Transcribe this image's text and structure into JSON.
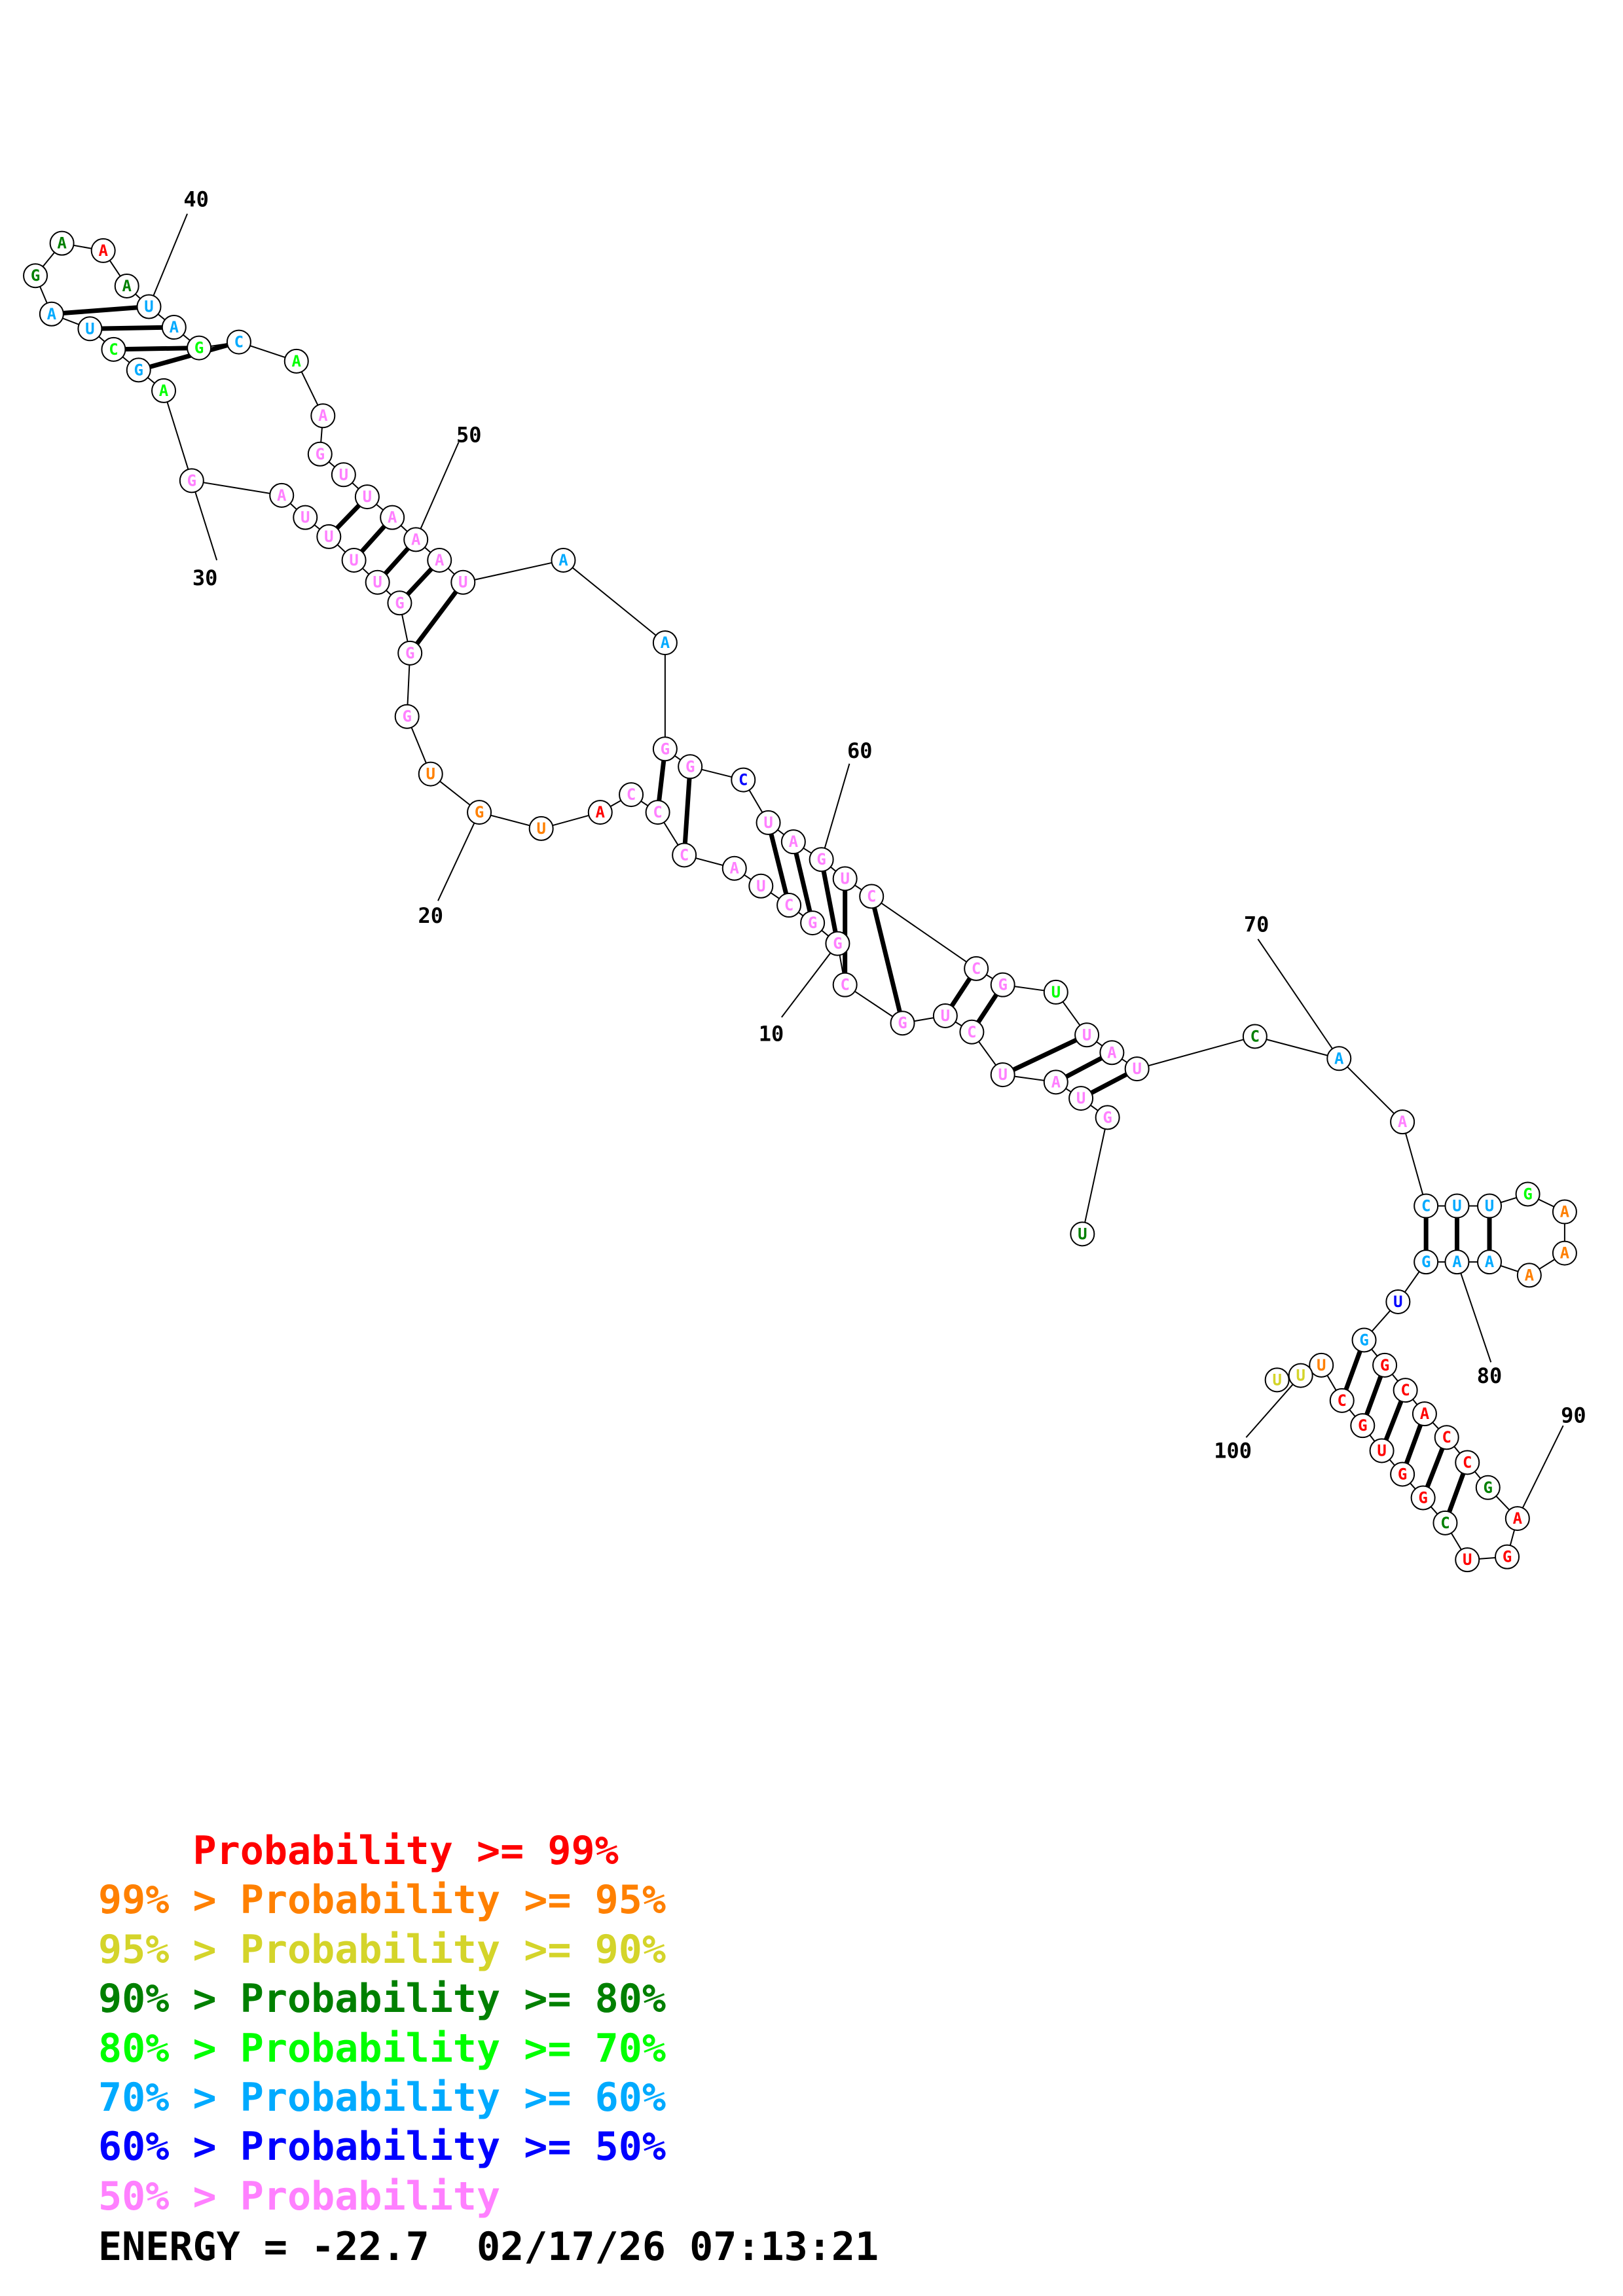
{
  "colors": {
    "p99": "#ff0000",
    "p95": "#ff8000",
    "p90": "#d4d42a",
    "p80": "#008000",
    "p70": "#00ff00",
    "p60": "#00aaff",
    "p50": "#0000ff",
    "plow": "#ff80ff"
  },
  "structure": {
    "nucleotides": [
      {
        "i": 1,
        "b": "U",
        "c": "p80"
      },
      {
        "i": 2,
        "b": "G",
        "c": "plow"
      },
      {
        "i": 3,
        "b": "U",
        "c": "plow"
      },
      {
        "i": 4,
        "b": "A",
        "c": "plow"
      },
      {
        "i": 5,
        "b": "U",
        "c": "plow"
      },
      {
        "i": 6,
        "b": "C",
        "c": "plow"
      },
      {
        "i": 7,
        "b": "U",
        "c": "plow"
      },
      {
        "i": 8,
        "b": "G",
        "c": "plow"
      },
      {
        "i": 9,
        "b": "C",
        "c": "plow"
      },
      {
        "i": 10,
        "b": "G",
        "c": "plow"
      },
      {
        "i": 11,
        "b": "G",
        "c": "plow"
      },
      {
        "i": 12,
        "b": "C",
        "c": "plow"
      },
      {
        "i": 13,
        "b": "U",
        "c": "plow"
      },
      {
        "i": 14,
        "b": "A",
        "c": "plow"
      },
      {
        "i": 15,
        "b": "C",
        "c": "plow"
      },
      {
        "i": 16,
        "b": "C",
        "c": "plow"
      },
      {
        "i": 17,
        "b": "C",
        "c": "plow"
      },
      {
        "i": 18,
        "b": "A",
        "c": "p99"
      },
      {
        "i": 19,
        "b": "U",
        "c": "p95"
      },
      {
        "i": 20,
        "b": "G",
        "c": "p95"
      },
      {
        "i": 21,
        "b": "U",
        "c": "p95"
      },
      {
        "i": 22,
        "b": "G",
        "c": "plow"
      },
      {
        "i": 23,
        "b": "G",
        "c": "plow"
      },
      {
        "i": 24,
        "b": "G",
        "c": "plow"
      },
      {
        "i": 25,
        "b": "U",
        "c": "plow"
      },
      {
        "i": 26,
        "b": "U",
        "c": "plow"
      },
      {
        "i": 27,
        "b": "U",
        "c": "plow"
      },
      {
        "i": 28,
        "b": "U",
        "c": "plow"
      },
      {
        "i": 29,
        "b": "A",
        "c": "plow"
      },
      {
        "i": 30,
        "b": "G",
        "c": "plow"
      },
      {
        "i": 31,
        "b": "A",
        "c": "p70"
      },
      {
        "i": 32,
        "b": "G",
        "c": "p60"
      },
      {
        "i": 33,
        "b": "C",
        "c": "p70"
      },
      {
        "i": 34,
        "b": "U",
        "c": "p60"
      },
      {
        "i": 35,
        "b": "A",
        "c": "p60"
      },
      {
        "i": 36,
        "b": "G",
        "c": "p80"
      },
      {
        "i": 37,
        "b": "A",
        "c": "p80"
      },
      {
        "i": 38,
        "b": "A",
        "c": "p99"
      },
      {
        "i": 39,
        "b": "A",
        "c": "p80"
      },
      {
        "i": 40,
        "b": "U",
        "c": "p60"
      },
      {
        "i": 41,
        "b": "A",
        "c": "p60"
      },
      {
        "i": 42,
        "b": "G",
        "c": "p70"
      },
      {
        "i": 43,
        "b": "C",
        "c": "p60"
      },
      {
        "i": 44,
        "b": "A",
        "c": "p70"
      },
      {
        "i": 45,
        "b": "A",
        "c": "plow"
      },
      {
        "i": 46,
        "b": "G",
        "c": "plow"
      },
      {
        "i": 47,
        "b": "U",
        "c": "plow"
      },
      {
        "i": 48,
        "b": "U",
        "c": "plow"
      },
      {
        "i": 49,
        "b": "A",
        "c": "plow"
      },
      {
        "i": 50,
        "b": "A",
        "c": "plow"
      },
      {
        "i": 51,
        "b": "A",
        "c": "plow"
      },
      {
        "i": 52,
        "b": "U",
        "c": "plow"
      },
      {
        "i": 53,
        "b": "A",
        "c": "p60"
      },
      {
        "i": 54,
        "b": "A",
        "c": "p60"
      },
      {
        "i": 55,
        "b": "G",
        "c": "plow"
      },
      {
        "i": 56,
        "b": "G",
        "c": "plow"
      },
      {
        "i": 57,
        "b": "C",
        "c": "p50"
      },
      {
        "i": 58,
        "b": "U",
        "c": "plow"
      },
      {
        "i": 59,
        "b": "A",
        "c": "plow"
      },
      {
        "i": 60,
        "b": "G",
        "c": "plow"
      },
      {
        "i": 61,
        "b": "U",
        "c": "plow"
      },
      {
        "i": 62,
        "b": "C",
        "c": "plow"
      },
      {
        "i": 63,
        "b": "C",
        "c": "plow"
      },
      {
        "i": 64,
        "b": "G",
        "c": "plow"
      },
      {
        "i": 65,
        "b": "U",
        "c": "p70"
      },
      {
        "i": 66,
        "b": "U",
        "c": "plow"
      },
      {
        "i": 67,
        "b": "A",
        "c": "plow"
      },
      {
        "i": 68,
        "b": "U",
        "c": "plow"
      },
      {
        "i": 69,
        "b": "C",
        "c": "p80"
      },
      {
        "i": 70,
        "b": "A",
        "c": "p60"
      },
      {
        "i": 71,
        "b": "A",
        "c": "plow"
      },
      {
        "i": 72,
        "b": "C",
        "c": "p60"
      },
      {
        "i": 73,
        "b": "U",
        "c": "p60"
      },
      {
        "i": 74,
        "b": "U",
        "c": "p60"
      },
      {
        "i": 75,
        "b": "G",
        "c": "p70"
      },
      {
        "i": 76,
        "b": "A",
        "c": "p95"
      },
      {
        "i": 77,
        "b": "A",
        "c": "p95"
      },
      {
        "i": 78,
        "b": "A",
        "c": "p95"
      },
      {
        "i": 79,
        "b": "A",
        "c": "p60"
      },
      {
        "i": 80,
        "b": "A",
        "c": "p60"
      },
      {
        "i": 81,
        "b": "G",
        "c": "p60"
      },
      {
        "i": 82,
        "b": "U",
        "c": "p50"
      },
      {
        "i": 83,
        "b": "G",
        "c": "p60"
      },
      {
        "i": 84,
        "b": "G",
        "c": "p99"
      },
      {
        "i": 85,
        "b": "C",
        "c": "p99"
      },
      {
        "i": 86,
        "b": "A",
        "c": "p99"
      },
      {
        "i": 87,
        "b": "C",
        "c": "p99"
      },
      {
        "i": 88,
        "b": "C",
        "c": "p99"
      },
      {
        "i": 89,
        "b": "G",
        "c": "p80"
      },
      {
        "i": 90,
        "b": "A",
        "c": "p99"
      },
      {
        "i": 91,
        "b": "G",
        "c": "p99"
      },
      {
        "i": 92,
        "b": "U",
        "c": "p99"
      },
      {
        "i": 93,
        "b": "C",
        "c": "p80"
      },
      {
        "i": 94,
        "b": "G",
        "c": "p99"
      },
      {
        "i": 95,
        "b": "G",
        "c": "p99"
      },
      {
        "i": 96,
        "b": "U",
        "c": "p99"
      },
      {
        "i": 97,
        "b": "G",
        "c": "p99"
      },
      {
        "i": 98,
        "b": "C",
        "c": "p99"
      },
      {
        "i": 99,
        "b": "U",
        "c": "p95"
      },
      {
        "i": 100,
        "b": "U",
        "c": "p90"
      },
      {
        "i": 101,
        "b": "U",
        "c": "p90"
      }
    ],
    "pairs": [
      [
        3,
        68
      ],
      [
        4,
        67
      ],
      [
        5,
        66
      ],
      [
        6,
        64
      ],
      [
        7,
        63
      ],
      [
        8,
        62
      ],
      [
        9,
        61
      ],
      [
        10,
        60
      ],
      [
        11,
        59
      ],
      [
        12,
        58
      ],
      [
        15,
        56
      ],
      [
        16,
        55
      ],
      [
        23,
        52
      ],
      [
        24,
        51
      ],
      [
        25,
        50
      ],
      [
        26,
        49
      ],
      [
        27,
        48
      ],
      [
        32,
        43
      ],
      [
        33,
        42
      ],
      [
        34,
        41
      ],
      [
        35,
        40
      ],
      [
        72,
        81
      ],
      [
        73,
        80
      ],
      [
        74,
        79
      ],
      [
        83,
        98
      ],
      [
        84,
        97
      ],
      [
        85,
        96
      ],
      [
        86,
        95
      ],
      [
        87,
        94
      ],
      [
        88,
        93
      ]
    ],
    "index_labels": [
      "10",
      "20",
      "30",
      "40",
      "50",
      "60",
      "70",
      "80",
      "90",
      "100"
    ]
  },
  "legend": [
    {
      "prefix": "    ",
      "text": "Probability >= 99%",
      "color": "p99"
    },
    {
      "prefix": "99% > ",
      "text": "Probability >= 95%",
      "color": "p95"
    },
    {
      "prefix": "95% > ",
      "text": "Probability >= 90%",
      "color": "p90"
    },
    {
      "prefix": "90% > ",
      "text": "Probability >= 80%",
      "color": "p80"
    },
    {
      "prefix": "80% > ",
      "text": "Probability >= 70%",
      "color": "p70"
    },
    {
      "prefix": "70% > ",
      "text": "Probability >= 60%",
      "color": "p60"
    },
    {
      "prefix": "60% > ",
      "text": "Probability >= 50%",
      "color": "p50"
    },
    {
      "prefix": "50% > ",
      "text": "Probability",
      "color": "plow"
    }
  ],
  "energy": {
    "text": "ENERGY = -22.7  02/17/26 07:13:21"
  }
}
